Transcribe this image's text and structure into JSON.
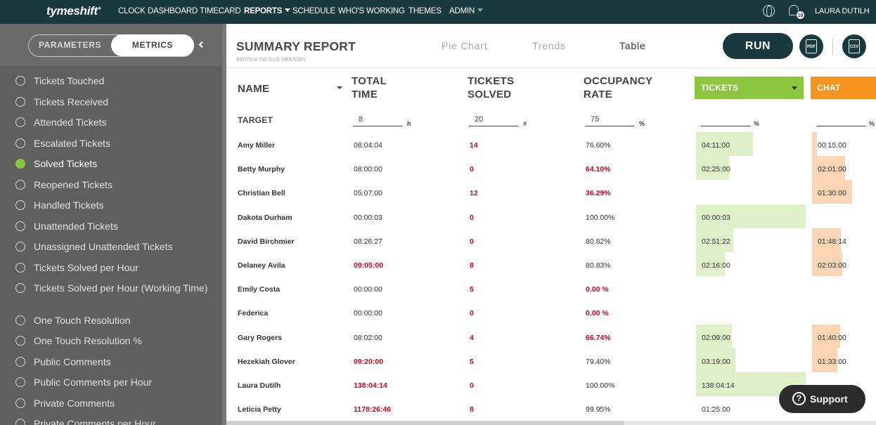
{
  "nav": {
    "logo": "tymeshift",
    "items": [
      "CLOCK",
      "DASHBOARD",
      "TIMECARD",
      "REPORTS",
      "SCHEDULE",
      "WHO'S WORKING",
      "THEMES",
      "ADMIN"
    ],
    "notification_count": "10",
    "user": "LAURA DUTILH"
  },
  "sidebar": {
    "tabs": [
      "PARAMETERS",
      "METRICS"
    ],
    "active_tab": "METRICS",
    "metrics": [
      "Tickets Touched",
      "Tickets Received",
      "Attended Tickets",
      "Escalated Tickets",
      "Solved Tickets",
      "Reopened Tickets",
      "Handled Tickets",
      "Unattended Tickets",
      "Unassigned Unattended Tickets",
      "Tickets Solved per Hour",
      "Tickets Solved per Hour (Working Time)",
      "One Touch Resolution",
      "One Touch Resolution %",
      "Public Comments",
      "Public Comments per Hour",
      "Private Comments",
      "Private Comments per Hour"
    ],
    "selected_metric": "Solved Tickets"
  },
  "report": {
    "title": "SUMMARY REPORT",
    "subtitle": "SWITCH TO OLD VERSION",
    "views": [
      "Pie Chart",
      "Trends",
      "Table"
    ],
    "active_view": "Table",
    "run_label": "RUN",
    "pdf_label": "PDF",
    "csv_label": "CSV"
  },
  "table": {
    "headers": {
      "name": "NAME",
      "total_time": [
        "TOTAL",
        "TIME"
      ],
      "tickets_solved": [
        "TICKETS",
        "SOLVED"
      ],
      "occupancy_rate": [
        "OCCUPANCY",
        "RATE"
      ],
      "tickets_channel": "TICKETS",
      "chat_channel": "CHAT"
    },
    "target": {
      "label": "TARGET",
      "total_time": "8",
      "total_time_unit": "h",
      "tickets_solved": "20",
      "tickets_solved_unit": "#",
      "occupancy_rate": "75",
      "occupancy_unit": "%",
      "tickets_unit": "%",
      "chat_unit": "%"
    },
    "rows": [
      {
        "name": "Amy Miller",
        "total_time": "08:04:04",
        "time_red": false,
        "solved": "14",
        "occupancy": "76.60%",
        "occ_red": false,
        "tickets_time": "04:11:00",
        "tickets_fill": 0.52,
        "chat_time": "00:15:00",
        "chat_fill": 0.08
      },
      {
        "name": "Betty Murphy",
        "total_time": "08:00:00",
        "time_red": false,
        "solved": "0",
        "occupancy": "64.10%",
        "occ_red": true,
        "tickets_time": "02:25:00",
        "tickets_fill": 0.3,
        "chat_time": "02:01:00",
        "chat_fill": 0.52
      },
      {
        "name": "Christian Bell",
        "total_time": "05:07:00",
        "time_red": false,
        "solved": "12",
        "occupancy": "36.29%",
        "occ_red": true,
        "tickets_time": "",
        "tickets_fill": 0,
        "chat_time": "01:30:00",
        "chat_fill": 0.63
      },
      {
        "name": "Dakota Durham",
        "total_time": "00:00:03",
        "time_red": false,
        "solved": "0",
        "occupancy": "100.00%",
        "occ_red": false,
        "tickets_time": "00:00:03",
        "tickets_fill": 1.0,
        "chat_time": "",
        "chat_fill": 0
      },
      {
        "name": "David Birchmier",
        "total_time": "08:26:27",
        "time_red": false,
        "solved": "0",
        "occupancy": "80.82%",
        "occ_red": false,
        "tickets_time": "02:51:22",
        "tickets_fill": 0.34,
        "chat_time": "01:48:14",
        "chat_fill": 0.45
      },
      {
        "name": "Delaney Avila",
        "total_time": "09:05:00",
        "time_red": true,
        "solved": "8",
        "occupancy": "80.83%",
        "occ_red": false,
        "tickets_time": "02:16:00",
        "tickets_fill": 0.26,
        "chat_time": "02:03:00",
        "chat_fill": 0.47
      },
      {
        "name": "Emily Costa",
        "total_time": "00:00:00",
        "time_red": false,
        "solved": "5",
        "occupancy": "0.00 %",
        "occ_red": true,
        "tickets_time": "",
        "tickets_fill": 0,
        "chat_time": "",
        "chat_fill": 0
      },
      {
        "name": "Federica",
        "total_time": "00:00:00",
        "time_red": false,
        "solved": "0",
        "occupancy": "0.00 %",
        "occ_red": true,
        "tickets_time": "",
        "tickets_fill": 0,
        "chat_time": "",
        "chat_fill": 0
      },
      {
        "name": "Gary Rogers",
        "total_time": "08:02:00",
        "time_red": false,
        "solved": "4",
        "occupancy": "66.74%",
        "occ_red": true,
        "tickets_time": "02:09:00",
        "tickets_fill": 0.33,
        "chat_time": "01:40:00",
        "chat_fill": 0.44
      },
      {
        "name": "Hezekiah Glover",
        "total_time": "09:20:00",
        "time_red": true,
        "solved": "5",
        "occupancy": "79.40%",
        "occ_red": false,
        "tickets_time": "03:19:00",
        "tickets_fill": 0.36,
        "chat_time": "01:33:00",
        "chat_fill": 0.4
      },
      {
        "name": "Laura Dutilh",
        "total_time": "138:04:14",
        "time_red": true,
        "solved": "0",
        "occupancy": "100.00%",
        "occ_red": false,
        "tickets_time": "138:04:14",
        "tickets_fill": 1.0,
        "chat_time": "",
        "chat_fill": 0
      },
      {
        "name": "Leticia Petty",
        "total_time": "1178:26:46",
        "time_red": true,
        "solved": "8",
        "occupancy": "99.95%",
        "occ_red": false,
        "tickets_time": "01:25:00",
        "tickets_fill": 0,
        "chat_time": "",
        "chat_fill": 0
      }
    ]
  },
  "support": {
    "label": "Support"
  },
  "colors": {
    "nav": "#18393d",
    "green": "#8cc63f",
    "orange": "#f7941d",
    "red": "#d0021b"
  }
}
